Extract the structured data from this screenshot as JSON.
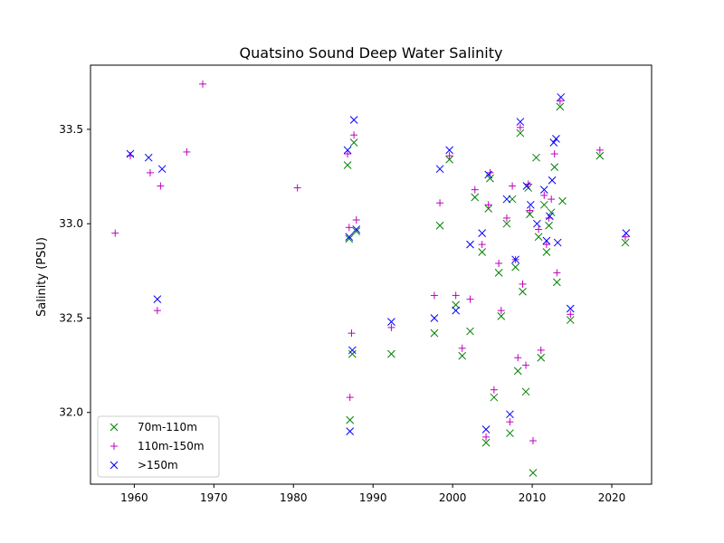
{
  "chart_data": {
    "type": "scatter",
    "title": "Quatsino Sound Deep Water Salinity",
    "xlabel": "",
    "ylabel": "Salinity (PSU)",
    "xlim": [
      1954.5,
      2025.0
    ],
    "ylim": [
      31.62,
      33.84
    ],
    "xticks": [
      1960,
      1970,
      1980,
      1990,
      2000,
      2010,
      2020
    ],
    "yticks": [
      32.0,
      32.5,
      33.0,
      33.5
    ],
    "xtick_labels": [
      "1960",
      "1970",
      "1980",
      "1990",
      "2000",
      "2010",
      "2020"
    ],
    "ytick_labels": [
      "32.0",
      "32.5",
      "33.0",
      "33.5"
    ],
    "grid": false,
    "legend": {
      "placement": "lower-left"
    },
    "series": [
      {
        "name": "70m-110m",
        "marker": "x",
        "color": "#008000",
        "points": [
          [
            1986.8,
            33.31
          ],
          [
            1987.0,
            32.92
          ],
          [
            1987.1,
            31.96
          ],
          [
            1987.4,
            32.31
          ],
          [
            1987.6,
            33.43
          ],
          [
            1987.9,
            32.96
          ],
          [
            1992.3,
            32.31
          ],
          [
            1997.7,
            32.42
          ],
          [
            1998.4,
            32.99
          ],
          [
            1999.6,
            33.34
          ],
          [
            2000.4,
            32.57
          ],
          [
            2001.2,
            32.3
          ],
          [
            2002.2,
            32.43
          ],
          [
            2002.8,
            33.14
          ],
          [
            2003.7,
            32.85
          ],
          [
            2004.2,
            31.84
          ],
          [
            2004.5,
            33.08
          ],
          [
            2004.7,
            33.24
          ],
          [
            2005.2,
            32.08
          ],
          [
            2005.8,
            32.74
          ],
          [
            2006.1,
            32.51
          ],
          [
            2006.8,
            33.0
          ],
          [
            2007.2,
            31.89
          ],
          [
            2007.5,
            33.13
          ],
          [
            2007.9,
            32.77
          ],
          [
            2008.2,
            32.22
          ],
          [
            2008.5,
            33.48
          ],
          [
            2008.8,
            32.64
          ],
          [
            2009.2,
            32.11
          ],
          [
            2009.5,
            33.19
          ],
          [
            2009.7,
            33.05
          ],
          [
            2010.1,
            31.68
          ],
          [
            2010.5,
            33.35
          ],
          [
            2010.8,
            32.93
          ],
          [
            2011.1,
            32.29
          ],
          [
            2011.5,
            33.1
          ],
          [
            2011.8,
            32.85
          ],
          [
            2012.1,
            32.99
          ],
          [
            2012.4,
            33.06
          ],
          [
            2012.8,
            33.3
          ],
          [
            2013.1,
            32.69
          ],
          [
            2013.5,
            33.62
          ],
          [
            2013.8,
            33.12
          ],
          [
            2014.8,
            32.49
          ],
          [
            2018.5,
            33.36
          ],
          [
            2021.7,
            32.9
          ]
        ]
      },
      {
        "name": "110m-150m",
        "marker": "+",
        "color": "#bf00bf",
        "points": [
          [
            1957.6,
            32.95
          ],
          [
            1959.5,
            33.36
          ],
          [
            1962.0,
            33.27
          ],
          [
            1962.9,
            32.54
          ],
          [
            1963.3,
            33.2
          ],
          [
            1966.6,
            33.38
          ],
          [
            1968.6,
            33.74
          ],
          [
            1980.5,
            33.19
          ],
          [
            1986.8,
            33.37
          ],
          [
            1987.0,
            32.98
          ],
          [
            1987.1,
            32.08
          ],
          [
            1987.3,
            32.42
          ],
          [
            1987.6,
            33.47
          ],
          [
            1987.9,
            33.02
          ],
          [
            1992.3,
            32.45
          ],
          [
            1997.7,
            32.62
          ],
          [
            1998.4,
            33.11
          ],
          [
            1999.6,
            33.36
          ],
          [
            2000.4,
            32.62
          ],
          [
            2001.2,
            32.34
          ],
          [
            2002.2,
            32.6
          ],
          [
            2002.8,
            33.18
          ],
          [
            2003.7,
            32.89
          ],
          [
            2004.2,
            31.87
          ],
          [
            2004.5,
            33.1
          ],
          [
            2004.7,
            33.27
          ],
          [
            2005.2,
            32.12
          ],
          [
            2005.8,
            32.79
          ],
          [
            2006.1,
            32.54
          ],
          [
            2006.8,
            33.03
          ],
          [
            2007.2,
            31.95
          ],
          [
            2007.5,
            33.2
          ],
          [
            2007.9,
            32.81
          ],
          [
            2008.2,
            32.29
          ],
          [
            2008.5,
            33.51
          ],
          [
            2008.8,
            32.68
          ],
          [
            2009.2,
            32.25
          ],
          [
            2009.5,
            33.21
          ],
          [
            2009.7,
            33.07
          ],
          [
            2010.1,
            31.85
          ],
          [
            2010.8,
            32.97
          ],
          [
            2011.1,
            32.33
          ],
          [
            2011.5,
            33.15
          ],
          [
            2011.8,
            32.89
          ],
          [
            2012.1,
            33.03
          ],
          [
            2012.4,
            33.13
          ],
          [
            2012.8,
            33.37
          ],
          [
            2013.1,
            32.74
          ],
          [
            2013.5,
            33.65
          ],
          [
            2014.8,
            32.52
          ],
          [
            2018.5,
            33.39
          ],
          [
            2021.7,
            32.93
          ]
        ]
      },
      {
        "name": ">150m",
        "marker": "x",
        "color": "#0000ff",
        "points": [
          [
            1959.5,
            33.37
          ],
          [
            1961.8,
            33.35
          ],
          [
            1962.9,
            32.6
          ],
          [
            1963.5,
            33.29
          ],
          [
            1986.8,
            33.39
          ],
          [
            1987.0,
            32.93
          ],
          [
            1987.1,
            31.9
          ],
          [
            1987.4,
            32.33
          ],
          [
            1987.6,
            33.55
          ],
          [
            1987.9,
            32.97
          ],
          [
            1992.3,
            32.48
          ],
          [
            1997.7,
            32.5
          ],
          [
            1998.4,
            33.29
          ],
          [
            1999.6,
            33.39
          ],
          [
            2000.4,
            32.54
          ],
          [
            2002.2,
            32.89
          ],
          [
            2003.7,
            32.95
          ],
          [
            2004.2,
            31.91
          ],
          [
            2004.5,
            33.26
          ],
          [
            2006.8,
            33.13
          ],
          [
            2007.2,
            31.99
          ],
          [
            2007.9,
            32.81
          ],
          [
            2008.5,
            33.54
          ],
          [
            2009.3,
            33.2
          ],
          [
            2009.8,
            33.1
          ],
          [
            2010.6,
            33.0
          ],
          [
            2011.5,
            33.18
          ],
          [
            2011.8,
            32.91
          ],
          [
            2012.2,
            33.04
          ],
          [
            2012.5,
            33.23
          ],
          [
            2012.7,
            33.43
          ],
          [
            2013.0,
            33.45
          ],
          [
            2013.2,
            32.9
          ],
          [
            2013.6,
            33.67
          ],
          [
            2014.8,
            32.55
          ],
          [
            2021.8,
            32.95
          ]
        ]
      }
    ]
  }
}
